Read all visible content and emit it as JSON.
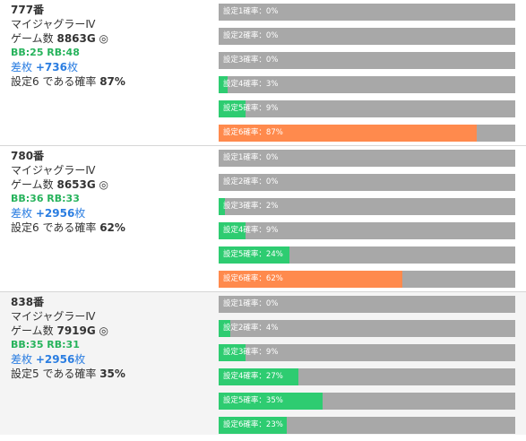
{
  "machines": [
    {
      "number": "777番",
      "name": "マイジャグラーⅣ",
      "games_prefix": "ゲーム数",
      "games": "8863G",
      "games_icon": "clock-icon",
      "games_icon_glyph": "◎",
      "bb_rb": "BB:25 RB:48",
      "diff_prefix": "差枚",
      "diff_value": "+736",
      "diff_suffix": "枚",
      "prob_prefix": "設定6",
      "prob_middle": "である確率",
      "prob_value": "87%",
      "settings": [
        {
          "label": "設定1確率：0%",
          "percent": 0
        },
        {
          "label": "設定2確率：0%",
          "percent": 0
        },
        {
          "label": "設定3確率：0%",
          "percent": 0
        },
        {
          "label": "設定4確率：3%",
          "percent": 3
        },
        {
          "label": "設定5確率：9%",
          "percent": 9
        },
        {
          "label": "設定6確率：87%",
          "percent": 87
        }
      ]
    },
    {
      "number": "780番",
      "name": "マイジャグラーⅣ",
      "games_prefix": "ゲーム数",
      "games": "8653G",
      "games_icon": "clock-icon",
      "games_icon_glyph": "◎",
      "bb_rb": "BB:36 RB:33",
      "diff_prefix": "差枚",
      "diff_value": "+2956",
      "diff_suffix": "枚",
      "prob_prefix": "設定6",
      "prob_middle": "である確率",
      "prob_value": "62%",
      "settings": [
        {
          "label": "設定1確率：0%",
          "percent": 0
        },
        {
          "label": "設定2確率：0%",
          "percent": 0
        },
        {
          "label": "設定3確率：2%",
          "percent": 2
        },
        {
          "label": "設定4確率：9%",
          "percent": 9
        },
        {
          "label": "設定5確率：24%",
          "percent": 24
        },
        {
          "label": "設定6確率：62%",
          "percent": 62
        }
      ]
    },
    {
      "number": "838番",
      "name": "マイジャグラーⅣ",
      "games_prefix": "ゲーム数",
      "games": "7919G",
      "games_icon": "clock-icon",
      "games_icon_glyph": "◎",
      "bb_rb": "BB:35 RB:31",
      "diff_prefix": "差枚",
      "diff_value": "+2956",
      "diff_suffix": "枚",
      "prob_prefix": "設定5",
      "prob_middle": "である確率",
      "prob_value": "35%",
      "settings": [
        {
          "label": "設定1確率：0%",
          "percent": 0
        },
        {
          "label": "設定2確率：4%",
          "percent": 4
        },
        {
          "label": "設定3確率：9%",
          "percent": 9
        },
        {
          "label": "設定4確率：27%",
          "percent": 27
        },
        {
          "label": "設定5確率：35%",
          "percent": 35
        },
        {
          "label": "設定6確率：23%",
          "percent": 23
        }
      ]
    }
  ],
  "colors": {
    "bar_background": "#a8a8a8",
    "bar_fill": "#2ecc71",
    "bar_fill_highest": "#ff8a4d",
    "bb_rb_text": "#27b35c",
    "diff_text": "#2a7de1"
  }
}
